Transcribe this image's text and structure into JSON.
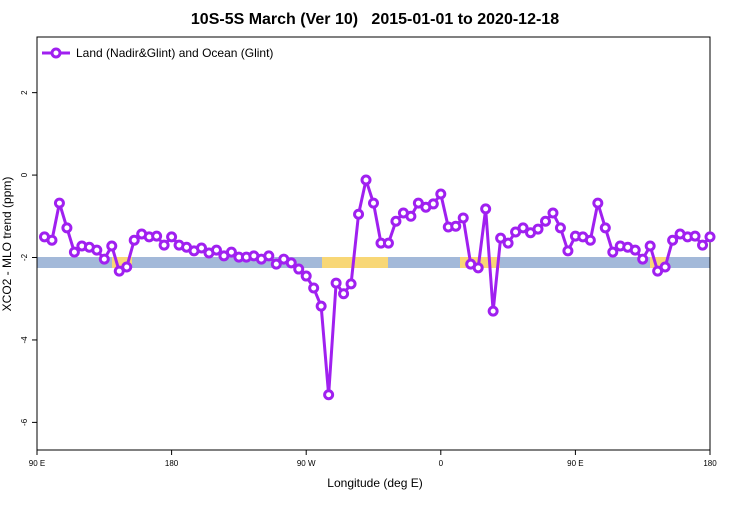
{
  "chart_data": {
    "type": "line",
    "title": "10S-5S March (Ver 10)   2015-01-01 to 2020-12-18",
    "x_label": "Longitude (deg E)",
    "y_label": "XCO2 - MLO trend (ppm)",
    "xlim": [
      90,
      540
    ],
    "ylim": [
      -6.67,
      3.35
    ],
    "xticks": [
      {
        "value": 90,
        "label": "90 E"
      },
      {
        "value": 180,
        "label": "180"
      },
      {
        "value": 270,
        "label": "90 W"
      },
      {
        "value": 360,
        "label": "0"
      },
      {
        "value": 450,
        "label": "90 E"
      },
      {
        "value": 540,
        "label": "180"
      }
    ],
    "yticks": [
      -6,
      -4,
      -2,
      0,
      2
    ],
    "legend": "top-left",
    "x": [
      95,
      100,
      105,
      110,
      115,
      120,
      125,
      130,
      135,
      140,
      145,
      150,
      155,
      160,
      165,
      170,
      175,
      180,
      185,
      190,
      195,
      200,
      205,
      210,
      215,
      220,
      225,
      230,
      235,
      240,
      245,
      250,
      255,
      260,
      265,
      270,
      275,
      280,
      285,
      290,
      295,
      300,
      305,
      310,
      315,
      320,
      325,
      330,
      335,
      340,
      345,
      350,
      355,
      360,
      365,
      370,
      375,
      380,
      385,
      390,
      395,
      400,
      405,
      410,
      415,
      420,
      425,
      430,
      435,
      440,
      445,
      450,
      455,
      460,
      465,
      470,
      475,
      480,
      485,
      490,
      495,
      500,
      505,
      510,
      515,
      520,
      525,
      530,
      535,
      540
    ],
    "series": [
      {
        "name": "Land (Nadir&Glint) and Ocean (Glint)",
        "color": "#a020f0",
        "values": [
          -1.5,
          -1.58,
          -0.68,
          -1.28,
          -1.87,
          -1.72,
          -1.75,
          -1.82,
          -2.04,
          -1.72,
          -2.33,
          -2.23,
          -1.58,
          -1.43,
          -1.5,
          -1.48,
          -1.7,
          -1.5,
          -1.7,
          -1.75,
          -1.84,
          -1.77,
          -1.89,
          -1.82,
          -1.96,
          -1.87,
          -1.99,
          -1.99,
          -1.96,
          -2.04,
          -1.96,
          -2.16,
          -2.04,
          -2.13,
          -2.28,
          -2.45,
          -2.74,
          -3.18,
          -5.33,
          -2.62,
          -2.88,
          -2.64,
          -0.95,
          -0.12,
          -0.68,
          -1.65,
          -1.65,
          -1.12,
          -0.92,
          -1.0,
          -0.68,
          -0.78,
          -0.7,
          -0.46,
          -1.26,
          -1.24,
          -1.04,
          -2.16,
          -2.25,
          -0.82,
          -3.3,
          -1.53,
          -1.65,
          -1.38,
          -1.28,
          -1.4,
          -1.31,
          -1.12,
          -0.92,
          -1.28,
          -1.84,
          -1.48,
          -1.5,
          -1.58,
          -0.68,
          -1.28,
          -1.87,
          -1.72,
          -1.75,
          -1.82,
          -2.04,
          -1.72,
          -2.33,
          -2.23,
          -1.58,
          -1.43,
          -1.5,
          -1.48,
          -1.7,
          -1.5
        ]
      }
    ]
  }
}
